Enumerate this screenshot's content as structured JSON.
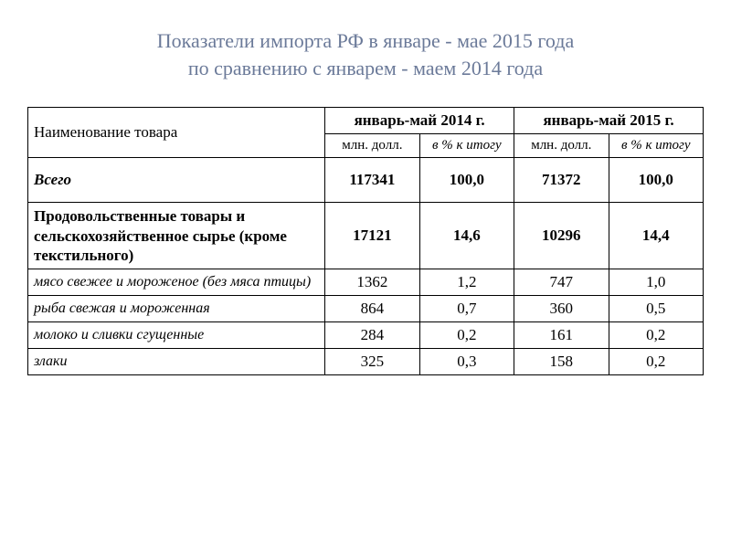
{
  "title": {
    "line1": "Показатели импорта РФ в январе - мае 2015 года",
    "line2": "по сравнению с январем - маем 2014 года"
  },
  "headers": {
    "name": "Наименование товара",
    "period_2014": "январь-май 2014 г.",
    "period_2015": "январь-май 2015 г.",
    "mln": "млн. долл.",
    "pct": "в % к итогу"
  },
  "rows": {
    "total": {
      "label": "Всего",
      "v2014_mln": "117341",
      "v2014_pct": "100,0",
      "v2015_mln": "71372",
      "v2015_pct": "100,0"
    },
    "food": {
      "label": "Продовольственные товары и сельскохозяйственное сырье (кроме текстильного)",
      "v2014_mln": "17121",
      "v2014_pct": "14,6",
      "v2015_mln": "10296",
      "v2015_pct": "14,4"
    },
    "meat": {
      "label": "мясо свежее и мороженое (без мяса птицы)",
      "v2014_mln": "1362",
      "v2014_pct": "1,2",
      "v2015_mln": "747",
      "v2015_pct": "1,0"
    },
    "fish": {
      "label": "рыба свежая и мороженная",
      "v2014_mln": "864",
      "v2014_pct": "0,7",
      "v2015_mln": "360",
      "v2015_pct": "0,5"
    },
    "milk": {
      "label": "молоко и сливки сгущенные",
      "v2014_mln": "284",
      "v2014_pct": "0,2",
      "v2015_mln": "161",
      "v2015_pct": "0,2"
    },
    "grain": {
      "label": "злаки",
      "v2014_mln": "325",
      "v2014_pct": "0,3",
      "v2015_mln": "158",
      "v2015_pct": "0,2"
    }
  },
  "style": {
    "title_color": "#6b7a99",
    "border_color": "#000000",
    "font_family": "Times New Roman"
  }
}
